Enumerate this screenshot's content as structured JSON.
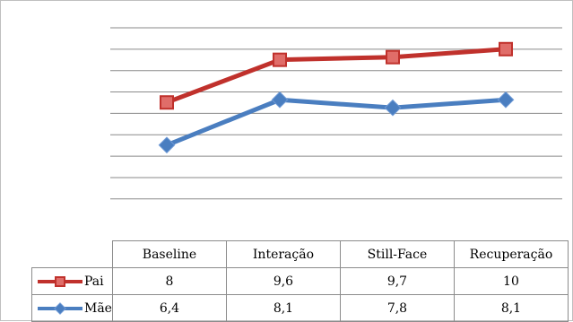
{
  "chart_data": {
    "type": "line",
    "categories": [
      "Baseline",
      "Interação",
      "Still-Face",
      "Recuperação"
    ],
    "series": [
      {
        "name": "Pai",
        "values": [
          8,
          9.6,
          9.7,
          10
        ],
        "color": "#c0312c",
        "marker": "square"
      },
      {
        "name": "Mãe",
        "values": [
          6.4,
          8.1,
          7.8,
          8.1
        ],
        "color": "#4a7ec0",
        "marker": "diamond"
      }
    ],
    "title": "",
    "xlabel": "",
    "ylabel": "",
    "ylim": [
      3.6,
      10.8
    ],
    "gridlines": true,
    "legend_placement": "data-table"
  }
}
